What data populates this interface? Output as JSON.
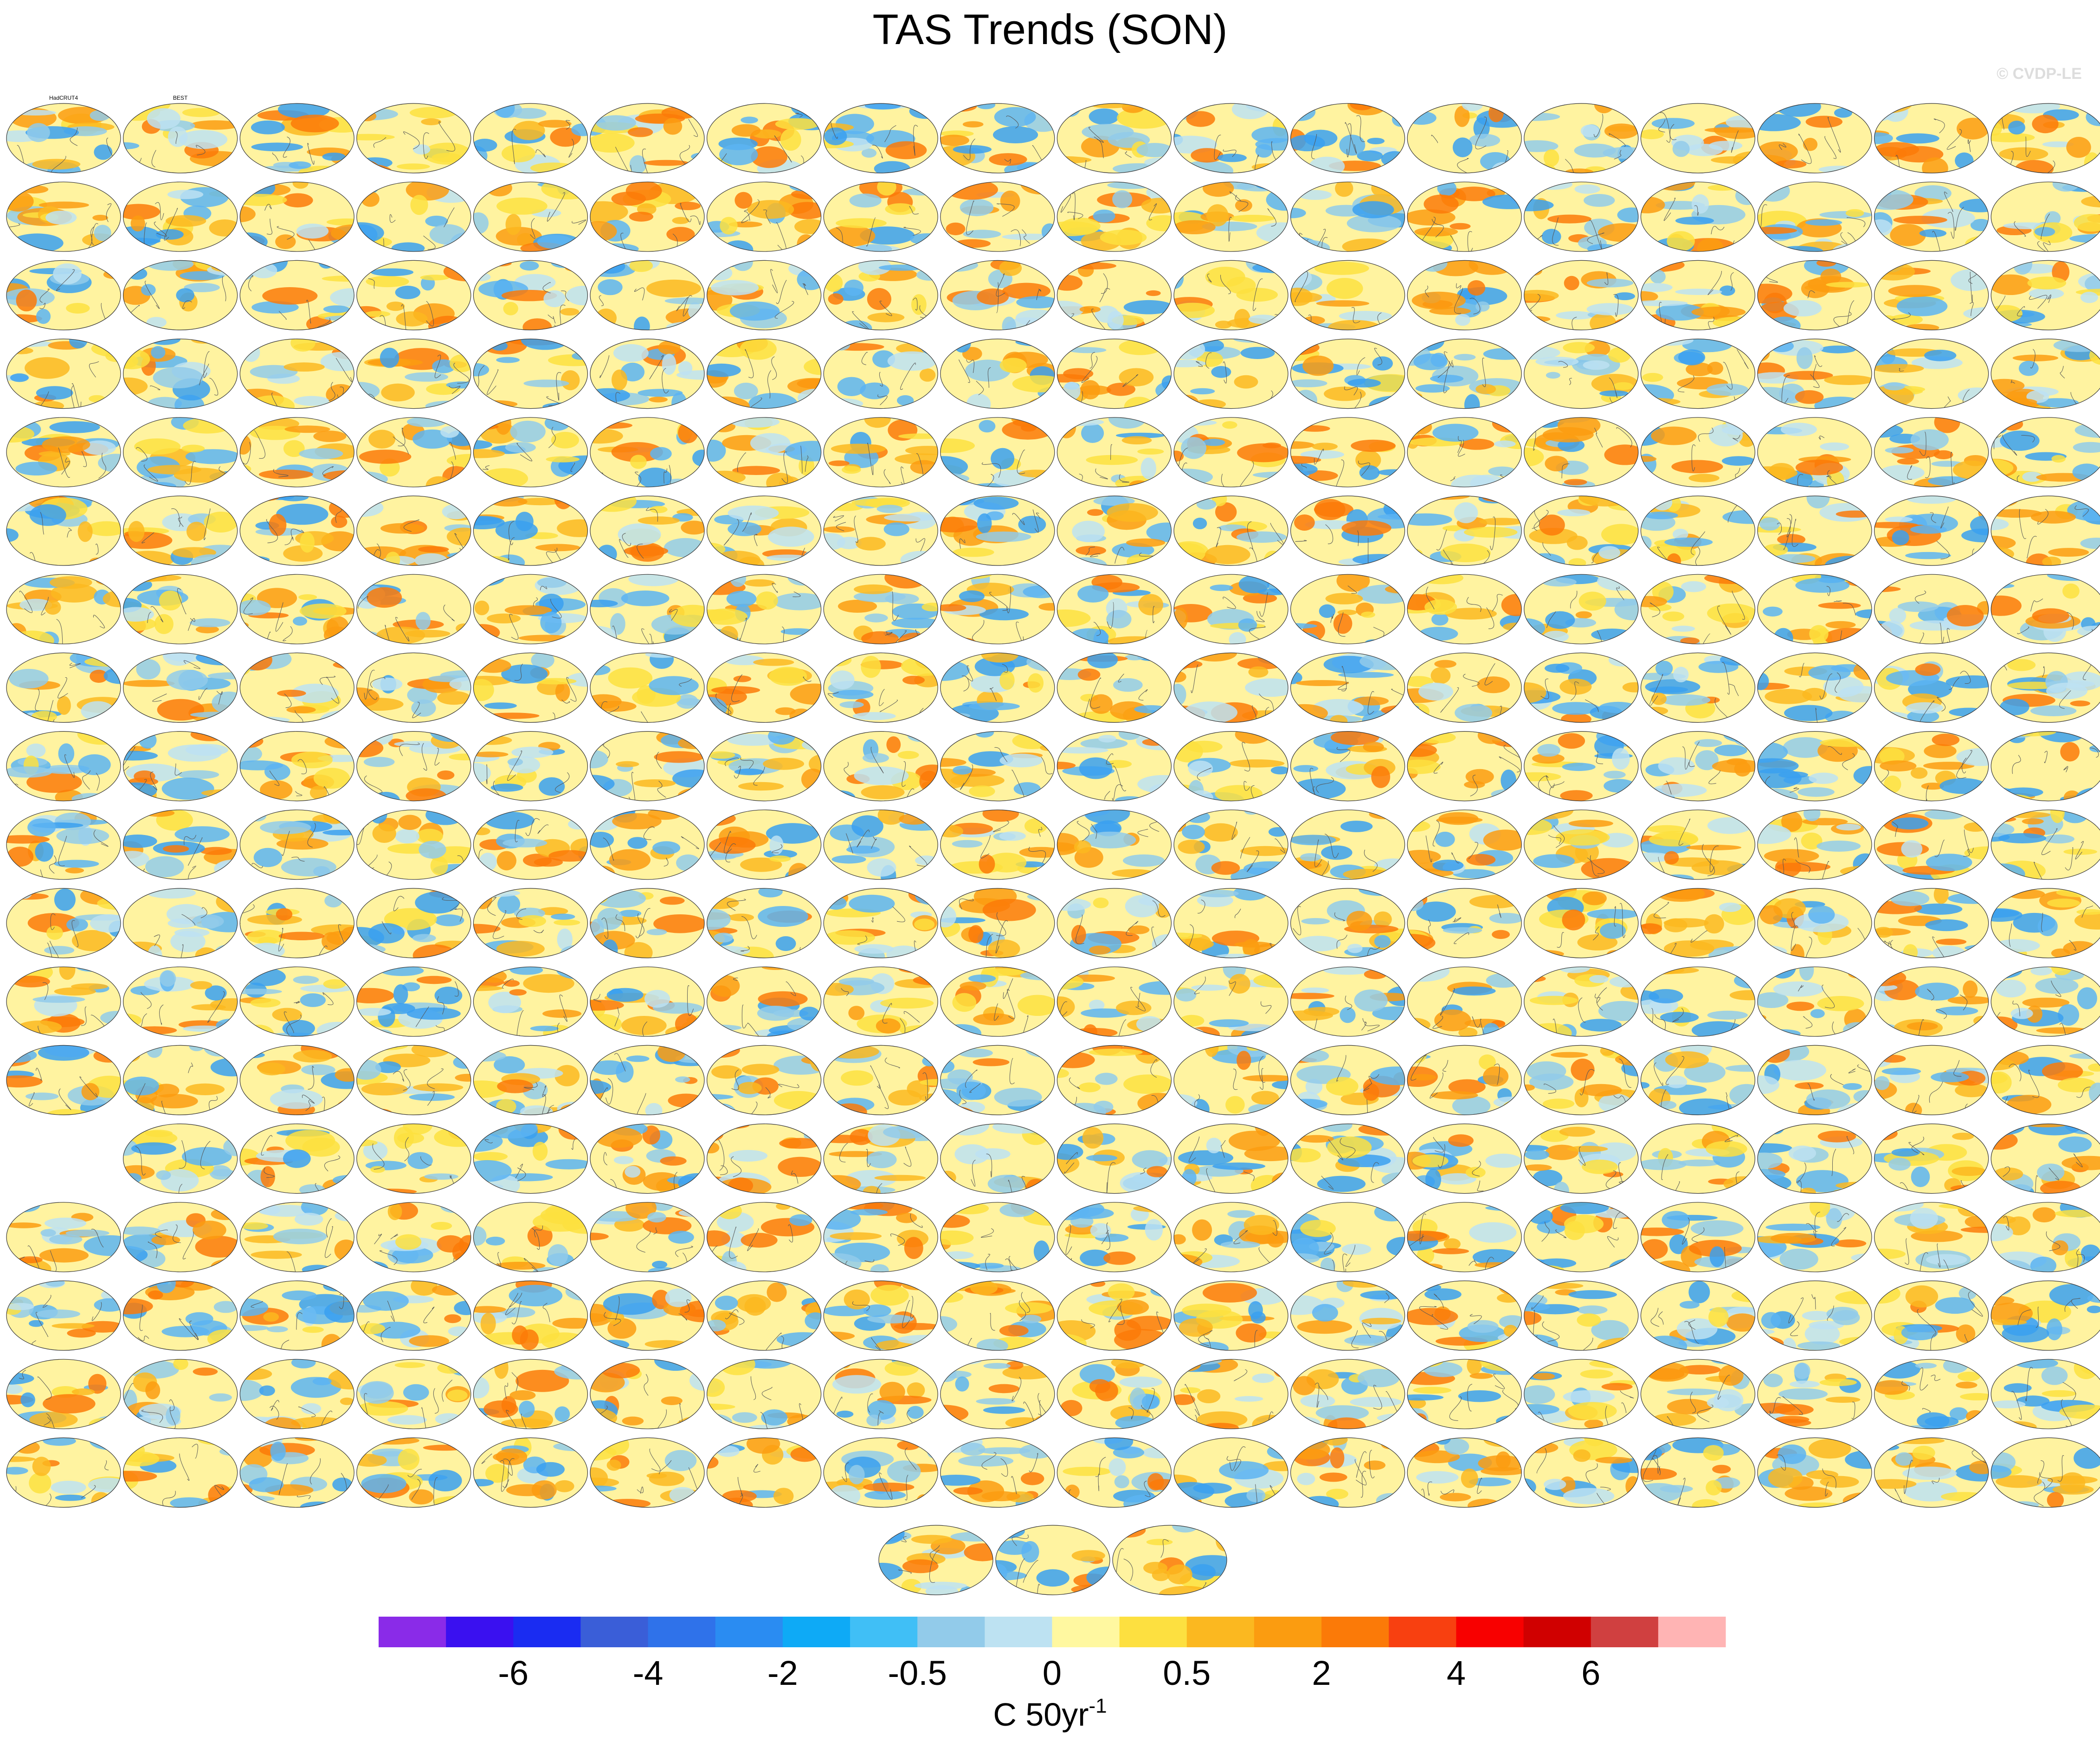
{
  "chart_data": {
    "type": "map-grid",
    "title": "TAS Trends (SON)",
    "watermark": "© CVDP-LE",
    "panel_titles": [
      "HadCRUT4",
      "BEST"
    ],
    "colorbar": {
      "colors": [
        "#8a2be8",
        "#3a10f0",
        "#1a2cf2",
        "#3a5ed8",
        "#2f72ea",
        "#2a8cf2",
        "#0eaaf6",
        "#40bff6",
        "#92cbea",
        "#bde2f2",
        "#fff8a0",
        "#fde040",
        "#fbb820",
        "#fb9c10",
        "#fb7a08",
        "#f84010",
        "#f80000",
        "#d00000",
        "#d04040",
        "#ffb4b4"
      ],
      "ticks": [
        -6,
        -4,
        -2,
        -0.5,
        0,
        0.5,
        2,
        4,
        6
      ],
      "label": "C 50yr",
      "label_sup": "-1"
    }
  }
}
